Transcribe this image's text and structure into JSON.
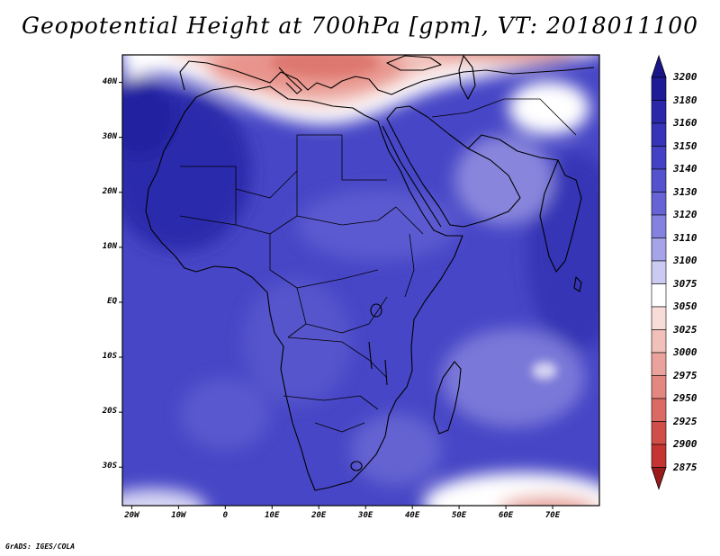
{
  "title": "Geopotential Height at 700hPa [gpm], VT: 2018011100",
  "credit": "GrADS: IGES/COLA",
  "map": {
    "lat_range": [
      -37,
      45
    ],
    "lon_range": [
      -22,
      80
    ],
    "lat_labels": [
      {
        "lat": 40,
        "text": "40N"
      },
      {
        "lat": 30,
        "text": "30N"
      },
      {
        "lat": 20,
        "text": "20N"
      },
      {
        "lat": 10,
        "text": "10N"
      },
      {
        "lat": 0,
        "text": "EQ"
      },
      {
        "lat": -10,
        "text": "10S"
      },
      {
        "lat": -20,
        "text": "20S"
      },
      {
        "lat": -30,
        "text": "30S"
      }
    ],
    "lon_labels": [
      {
        "lon": -20,
        "text": "20W"
      },
      {
        "lon": -10,
        "text": "10W"
      },
      {
        "lon": 0,
        "text": "0"
      },
      {
        "lon": 10,
        "text": "10E"
      },
      {
        "lon": 20,
        "text": "20E"
      },
      {
        "lon": 30,
        "text": "30E"
      },
      {
        "lon": 40,
        "text": "40E"
      },
      {
        "lon": 50,
        "text": "50E"
      },
      {
        "lon": 60,
        "text": "60E"
      },
      {
        "lon": 70,
        "text": "70E"
      }
    ]
  },
  "colorbar": {
    "levels": [
      {
        "label": "3200",
        "color": "#1e1b96"
      },
      {
        "label": "3180",
        "color": "#2a28a8"
      },
      {
        "label": "3160",
        "color": "#3634b8"
      },
      {
        "label": "3150",
        "color": "#4341c4"
      },
      {
        "label": "3140",
        "color": "#5452cc"
      },
      {
        "label": "3130",
        "color": "#6664d4"
      },
      {
        "label": "3120",
        "color": "#8482de"
      },
      {
        "label": "3110",
        "color": "#a6a4e8"
      },
      {
        "label": "3100",
        "color": "#cbcaf2"
      },
      {
        "label": "3075",
        "color": "#ffffff"
      },
      {
        "label": "3050",
        "color": "#f8dcd8"
      },
      {
        "label": "3025",
        "color": "#f2c0ba"
      },
      {
        "label": "3000",
        "color": "#eaa39c"
      },
      {
        "label": "2975",
        "color": "#e28880"
      },
      {
        "label": "2950",
        "color": "#d96a64"
      },
      {
        "label": "2925",
        "color": "#d04e4a"
      },
      {
        "label": "2900",
        "color": "#c33432"
      },
      {
        "label": "2875",
        "color": "#ad2020"
      }
    ],
    "top_color": "#19168a",
    "bottom_color": "#9a1a1a"
  }
}
